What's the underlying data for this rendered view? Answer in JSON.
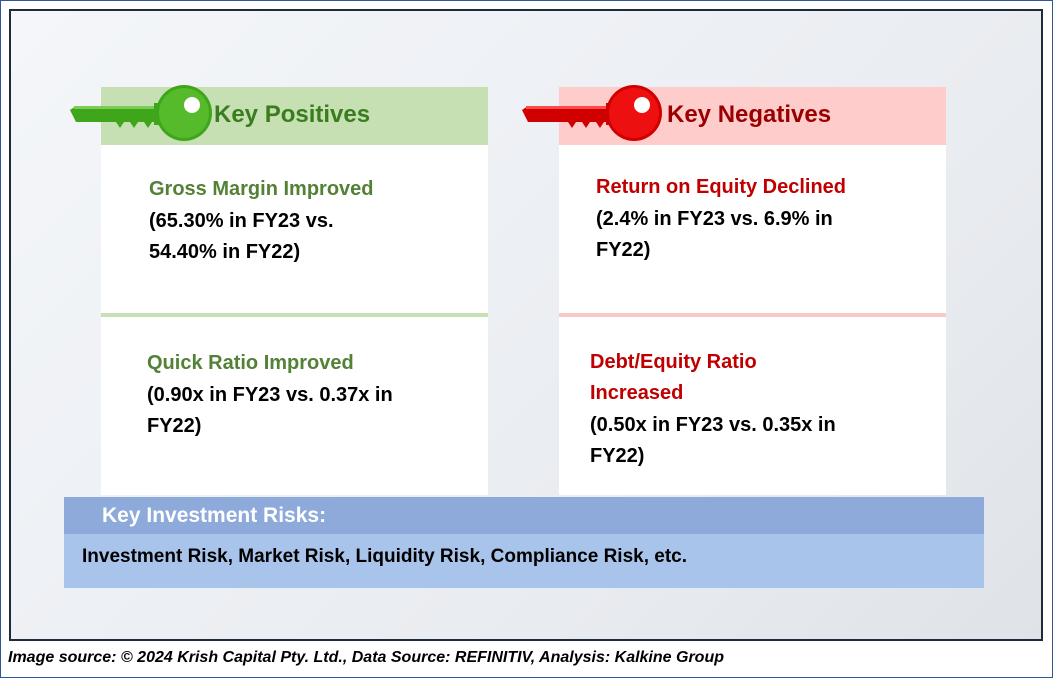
{
  "positives": {
    "title": "Key Positives",
    "items": [
      {
        "heading": "Gross Margin Improved",
        "line1": "(65.30% in FY23 vs.",
        "line2": "54.40% in FY22)"
      },
      {
        "heading": "Quick Ratio Improved",
        "line1": "(0.90x in FY23 vs. 0.37x in",
        "line2": "FY22)"
      }
    ]
  },
  "negatives": {
    "title": "Key Negatives",
    "items": [
      {
        "heading": "Return on Equity Declined",
        "line1": "(2.4% in FY23 vs. 6.9% in",
        "line2": "FY22)"
      },
      {
        "heading_line1": "Debt/Equity Ratio",
        "heading_line2": "Increased",
        "line1": "(0.50x in FY23 vs. 0.35x in",
        "line2": "FY22)"
      }
    ]
  },
  "risks": {
    "title": "Key Investment Risks:",
    "text": "Investment Risk, Market Risk, Liquidity Risk, Compliance Risk, etc."
  },
  "caption": "Image source: © 2024 Krish Capital Pty. Ltd., Data Source: REFINITIV, Analysis: Kalkine Group",
  "colors": {
    "positive_accent": "#3a9a14",
    "positive_header_bg": "#c6e0b4",
    "negative_accent": "#e30000",
    "negative_header_bg": "#ffcccc",
    "risk_header_bg": "#8eaadb",
    "risk_body_bg": "#a9c4eb"
  },
  "icons": {
    "positive_icon": "green-key-icon",
    "negative_icon": "red-key-icon"
  }
}
